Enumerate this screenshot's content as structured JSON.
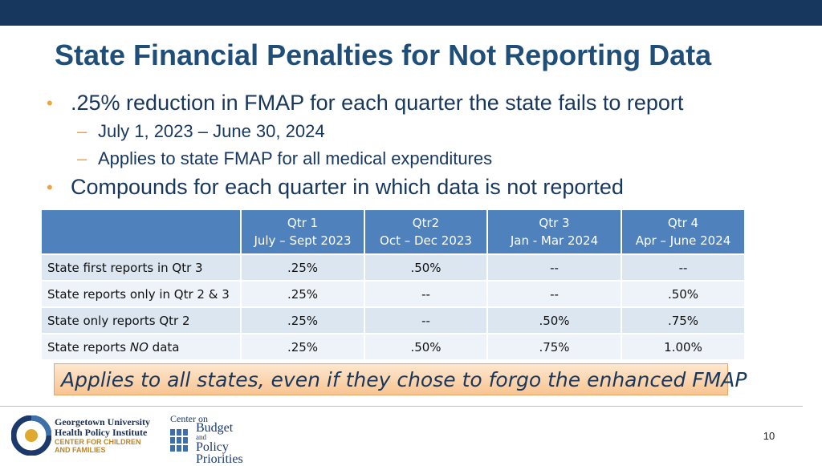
{
  "title": "State Financial Penalties for Not Reporting Data",
  "bullets": {
    "b1": ".25% reduction in  FMAP for each quarter the state fails to report",
    "b1_sub1": "July 1, 2023 – June 30, 2024",
    "b1_sub2": "Applies to state FMAP for all medical expenditures",
    "b2": "Compounds for each quarter in which data is not reported"
  },
  "table": {
    "headers": [
      {
        "line1": "",
        "line2": ""
      },
      {
        "line1": "Qtr 1",
        "line2": "July – Sept 2023"
      },
      {
        "line1": "Qtr2",
        "line2": "Oct – Dec 2023"
      },
      {
        "line1": "Qtr 3",
        "line2": "Jan - Mar 2024"
      },
      {
        "line1": "Qtr 4",
        "line2": "Apr – June 2024"
      }
    ],
    "rows": [
      {
        "label": "State first reports in Qtr 3",
        "cells": [
          ".25%",
          ".50%",
          "--",
          "--"
        ]
      },
      {
        "label": "State reports only in Qtr 2 & 3",
        "cells": [
          ".25%",
          "--",
          "--",
          ".50%"
        ]
      },
      {
        "label": "State only reports Qtr 2",
        "cells": [
          ".25%",
          "--",
          ".50%",
          ".75%"
        ]
      },
      {
        "label_prefix": "State reports ",
        "label_emph": "NO",
        "label_suffix": " data",
        "cells": [
          ".25%",
          ".50%",
          ".75%",
          "1.00%"
        ]
      }
    ]
  },
  "callout": "Applies to all states, even if they chose to forgo the enhanced FMAP",
  "footer": {
    "gu_logo": {
      "line1": "Georgetown University",
      "line2": "Health Policy Institute",
      "line3": "CENTER FOR CHILDREN",
      "line4": "AND FAMILIES",
      "icon": "gu-circle-logo-icon"
    },
    "cbpp_logo": {
      "center": "Center on",
      "budget": "Budget",
      "and": "and",
      "policy": "Policy",
      "priorities": "Priorities",
      "icon": "cbpp-building-icon"
    },
    "page_number": "10"
  },
  "colors": {
    "top_bar": "#17375e",
    "title": "#1f4e79",
    "bullet_marker": "#f2a33a",
    "table_header": "#4f81bd",
    "row_odd": "#dce6f1",
    "row_even": "#eef3f9",
    "callout_top": "#fde7d0",
    "callout_bottom": "#f9c491"
  }
}
